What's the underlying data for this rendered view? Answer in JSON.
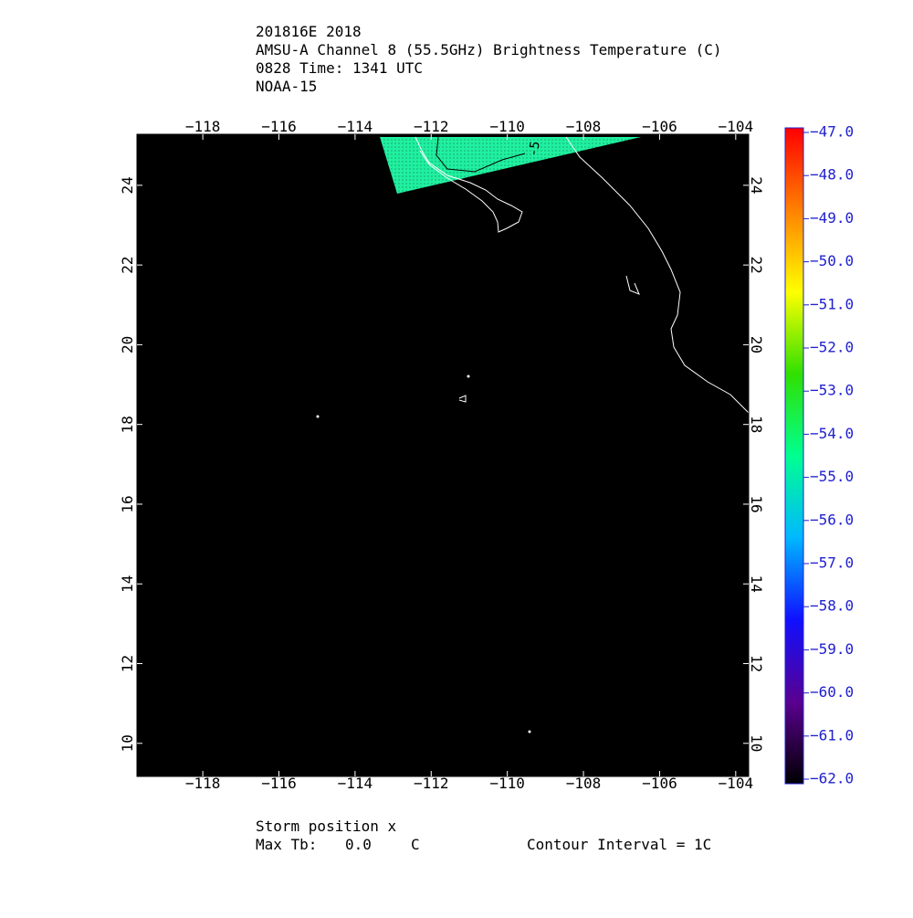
{
  "chart_data": {
    "type": "map",
    "title_lines": [
      "201816E 2018",
      "AMSU-A Channel 8 (55.5GHz) Brightness Temperature (C)",
      "0828 Time: 1341 UTC",
      "NOAA-15"
    ],
    "xlim": [
      -119.73,
      -103.66
    ],
    "xticks": [
      {
        "value": -118,
        "label": "−118"
      },
      {
        "value": -116,
        "label": "−116"
      },
      {
        "value": -114,
        "label": "−114"
      },
      {
        "value": -112,
        "label": "−112"
      },
      {
        "value": -110,
        "label": "−110"
      },
      {
        "value": -108,
        "label": "−108"
      },
      {
        "value": -106,
        "label": "−106"
      },
      {
        "value": -104,
        "label": "−104"
      }
    ],
    "ylim": [
      9.17,
      25.28
    ],
    "yticks": [
      10,
      12,
      14,
      16,
      18,
      20,
      22,
      24
    ],
    "colorbar": {
      "lim": [
        -62,
        -47
      ],
      "ticks": [
        {
          "value": -47,
          "label": "−47.0"
        },
        {
          "value": -48,
          "label": "−48.0"
        },
        {
          "value": -49,
          "label": "−49.0"
        },
        {
          "value": -50,
          "label": "−50.0"
        },
        {
          "value": -51,
          "label": "−51.0"
        },
        {
          "value": -52,
          "label": "−52.0"
        },
        {
          "value": -53,
          "label": "−53.0"
        },
        {
          "value": -54,
          "label": "−54.0"
        },
        {
          "value": -55,
          "label": "−55.0"
        },
        {
          "value": -56,
          "label": "−56.0"
        },
        {
          "value": -57,
          "label": "−57.0"
        },
        {
          "value": -58,
          "label": "−58.0"
        },
        {
          "value": -59,
          "label": "−59.0"
        },
        {
          "value": -60,
          "label": "−60.0"
        },
        {
          "value": -61,
          "label": "−61.0"
        },
        {
          "value": -62,
          "label": "−62.0"
        }
      ],
      "colors": [
        "#000000",
        "#5a0090",
        "#1010ff",
        "#00b8ff",
        "#00ff90",
        "#30e000",
        "#ffff00",
        "#ff8000",
        "#ff0000"
      ]
    },
    "contour_label": "-5",
    "footer": {
      "storm": "Storm position x",
      "max_tb_label": "Max Tb:",
      "max_tb_value": "0.0",
      "max_tb_unit": "C",
      "contour_interval": "Contour Interval = 1C"
    }
  }
}
